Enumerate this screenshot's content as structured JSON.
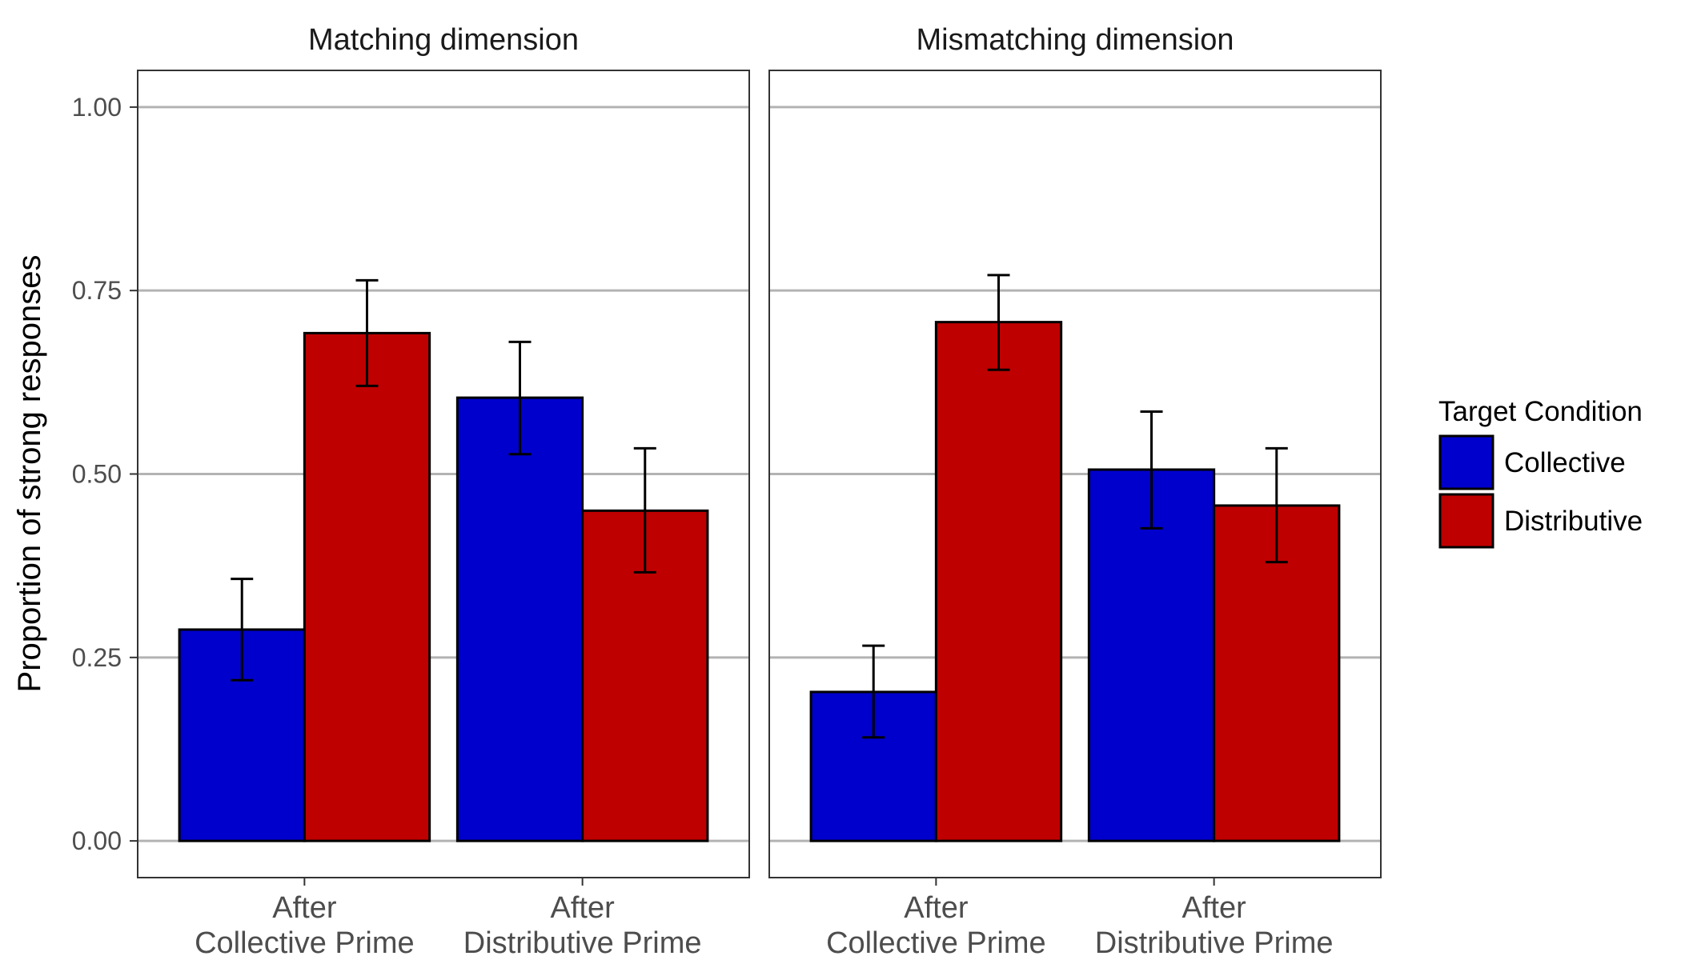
{
  "chart_data": {
    "type": "bar",
    "ylabel": "Proportion of strong responses",
    "ylim": [
      -0.05,
      1.05
    ],
    "y_ticks": [
      0,
      0.25,
      0.5,
      0.75,
      1.0
    ],
    "y_tick_labels": [
      "0.00",
      "0.25",
      "0.50",
      "0.75",
      "1.00"
    ],
    "grid": "horizontal major",
    "categories": [
      [
        "After",
        "Collective Prime"
      ],
      [
        "After",
        "Distributive Prime"
      ]
    ],
    "legend": {
      "title": "Target Condition",
      "position": "right",
      "entries": [
        {
          "name": "Collective",
          "color": "#0000CC"
        },
        {
          "name": "Distributive",
          "color": "#BF0000"
        }
      ]
    },
    "panels": [
      {
        "title": "Matching dimension",
        "series": [
          {
            "name": "Collective",
            "values": [
              0.288,
              0.604
            ],
            "err_low": [
              0.219,
              0.527
            ],
            "err_high": [
              0.357,
              0.68
            ]
          },
          {
            "name": "Distributive",
            "values": [
              0.692,
              0.45
            ],
            "err_low": [
              0.62,
              0.366
            ],
            "err_high": [
              0.764,
              0.535
            ]
          }
        ]
      },
      {
        "title": "Mismatching dimension",
        "series": [
          {
            "name": "Collective",
            "values": [
              0.203,
              0.506
            ],
            "err_low": [
              0.141,
              0.426
            ],
            "err_high": [
              0.266,
              0.585
            ]
          },
          {
            "name": "Distributive",
            "values": [
              0.707,
              0.457
            ],
            "err_low": [
              0.642,
              0.38
            ],
            "err_high": [
              0.771,
              0.535
            ]
          }
        ]
      }
    ]
  }
}
